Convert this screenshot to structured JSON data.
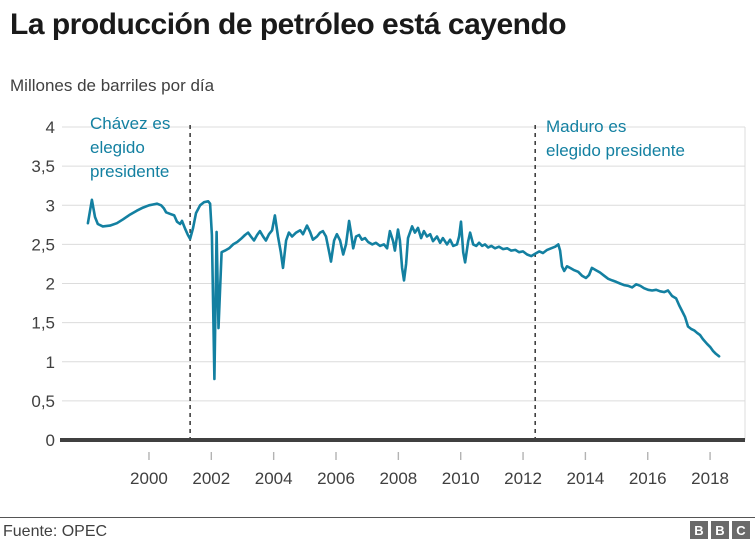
{
  "chart_data": {
    "type": "line",
    "title": "La producción de petróleo está cayendo",
    "subtitle": "Millones de barriles por día",
    "source": "Fuente: OPEC",
    "xlim": [
      1997.21,
      2019.12
    ],
    "ylim": [
      0,
      4
    ],
    "grid": "horizontal-only",
    "legend": "none",
    "line_color": "#1380A1",
    "axis_color": "#404040",
    "grid_color": "#dcdcdc",
    "minor_tick_color": "#b3b3b3",
    "tick_label_color": "#404040",
    "annotation_color": "#1380A1",
    "xticks": [
      2000,
      2002,
      2004,
      2006,
      2008,
      2010,
      2012,
      2014,
      2016,
      2018
    ],
    "yticks": [
      {
        "v": 0,
        "label": "0"
      },
      {
        "v": 0.5,
        "label": "0,5"
      },
      {
        "v": 1,
        "label": "1"
      },
      {
        "v": 1.5,
        "label": "1,5"
      },
      {
        "v": 2,
        "label": "2"
      },
      {
        "v": 2.5,
        "label": "2,5"
      },
      {
        "v": 3,
        "label": "3"
      },
      {
        "v": 3.5,
        "label": "3,5"
      },
      {
        "v": 4,
        "label": "4"
      }
    ],
    "event_lines": [
      {
        "year": 2001.32,
        "lines": [
          "Chávez es",
          "elegido",
          "presidente"
        ]
      },
      {
        "year": 2012.39,
        "lines": [
          "Maduro es",
          "elegido presidente"
        ]
      }
    ],
    "series": [
      {
        "points": [
          [
            1998.04,
            2.77
          ],
          [
            1998.17,
            3.07
          ],
          [
            1998.27,
            2.85
          ],
          [
            1998.36,
            2.76
          ],
          [
            1998.52,
            2.73
          ],
          [
            1998.75,
            2.74
          ],
          [
            1998.97,
            2.77
          ],
          [
            1999.17,
            2.82
          ],
          [
            1999.39,
            2.88
          ],
          [
            1999.61,
            2.93
          ],
          [
            1999.81,
            2.97
          ],
          [
            2000.0,
            3.0
          ],
          [
            2000.13,
            3.01
          ],
          [
            2000.26,
            3.02
          ],
          [
            2000.39,
            3.0
          ],
          [
            2000.48,
            2.96
          ],
          [
            2000.55,
            2.91
          ],
          [
            2000.68,
            2.89
          ],
          [
            2000.81,
            2.87
          ],
          [
            2000.9,
            2.79
          ],
          [
            2001.0,
            2.76
          ],
          [
            2001.06,
            2.8
          ],
          [
            2001.16,
            2.7
          ],
          [
            2001.25,
            2.62
          ],
          [
            2001.32,
            2.57
          ],
          [
            2001.41,
            2.7
          ],
          [
            2001.51,
            2.9
          ],
          [
            2001.64,
            3.0
          ],
          [
            2001.77,
            3.04
          ],
          [
            2001.9,
            3.05
          ],
          [
            2001.96,
            3.02
          ],
          [
            2002.02,
            2.62
          ],
          [
            2002.07,
            1.45
          ],
          [
            2002.1,
            0.78
          ],
          [
            2002.17,
            2.66
          ],
          [
            2002.23,
            1.43
          ],
          [
            2002.33,
            2.4
          ],
          [
            2002.44,
            2.42
          ],
          [
            2002.57,
            2.45
          ],
          [
            2002.7,
            2.5
          ],
          [
            2002.83,
            2.53
          ],
          [
            2002.95,
            2.57
          ],
          [
            2003.08,
            2.62
          ],
          [
            2003.18,
            2.65
          ],
          [
            2003.27,
            2.6
          ],
          [
            2003.37,
            2.55
          ],
          [
            2003.47,
            2.62
          ],
          [
            2003.56,
            2.67
          ],
          [
            2003.66,
            2.6
          ],
          [
            2003.75,
            2.55
          ],
          [
            2003.85,
            2.63
          ],
          [
            2003.95,
            2.68
          ],
          [
            2004.04,
            2.87
          ],
          [
            2004.14,
            2.6
          ],
          [
            2004.23,
            2.4
          ],
          [
            2004.3,
            2.2
          ],
          [
            2004.4,
            2.55
          ],
          [
            2004.49,
            2.65
          ],
          [
            2004.59,
            2.6
          ],
          [
            2004.72,
            2.65
          ],
          [
            2004.85,
            2.68
          ],
          [
            2004.94,
            2.63
          ],
          [
            2005.07,
            2.74
          ],
          [
            2005.17,
            2.66
          ],
          [
            2005.26,
            2.56
          ],
          [
            2005.39,
            2.6
          ],
          [
            2005.49,
            2.65
          ],
          [
            2005.58,
            2.67
          ],
          [
            2005.68,
            2.6
          ],
          [
            2005.78,
            2.4
          ],
          [
            2005.84,
            2.28
          ],
          [
            2005.94,
            2.55
          ],
          [
            2006.03,
            2.63
          ],
          [
            2006.13,
            2.55
          ],
          [
            2006.23,
            2.37
          ],
          [
            2006.32,
            2.5
          ],
          [
            2006.42,
            2.8
          ],
          [
            2006.48,
            2.65
          ],
          [
            2006.55,
            2.45
          ],
          [
            2006.64,
            2.6
          ],
          [
            2006.74,
            2.62
          ],
          [
            2006.83,
            2.56
          ],
          [
            2006.93,
            2.58
          ],
          [
            2007.03,
            2.53
          ],
          [
            2007.16,
            2.5
          ],
          [
            2007.28,
            2.52
          ],
          [
            2007.41,
            2.48
          ],
          [
            2007.54,
            2.5
          ],
          [
            2007.64,
            2.45
          ],
          [
            2007.73,
            2.67
          ],
          [
            2007.83,
            2.54
          ],
          [
            2007.89,
            2.42
          ],
          [
            2007.99,
            2.69
          ],
          [
            2008.05,
            2.55
          ],
          [
            2008.12,
            2.2
          ],
          [
            2008.18,
            2.04
          ],
          [
            2008.25,
            2.25
          ],
          [
            2008.31,
            2.58
          ],
          [
            2008.44,
            2.73
          ],
          [
            2008.53,
            2.65
          ],
          [
            2008.63,
            2.71
          ],
          [
            2008.73,
            2.58
          ],
          [
            2008.82,
            2.67
          ],
          [
            2008.92,
            2.6
          ],
          [
            2009.02,
            2.63
          ],
          [
            2009.11,
            2.54
          ],
          [
            2009.24,
            2.6
          ],
          [
            2009.34,
            2.52
          ],
          [
            2009.43,
            2.58
          ],
          [
            2009.56,
            2.5
          ],
          [
            2009.66,
            2.56
          ],
          [
            2009.76,
            2.48
          ],
          [
            2009.88,
            2.5
          ],
          [
            2009.95,
            2.6
          ],
          [
            2010.01,
            2.79
          ],
          [
            2010.08,
            2.4
          ],
          [
            2010.14,
            2.27
          ],
          [
            2010.24,
            2.54
          ],
          [
            2010.3,
            2.65
          ],
          [
            2010.4,
            2.5
          ],
          [
            2010.5,
            2.48
          ],
          [
            2010.59,
            2.52
          ],
          [
            2010.69,
            2.48
          ],
          [
            2010.78,
            2.5
          ],
          [
            2010.88,
            2.46
          ],
          [
            2010.98,
            2.48
          ],
          [
            2011.1,
            2.45
          ],
          [
            2011.23,
            2.47
          ],
          [
            2011.36,
            2.44
          ],
          [
            2011.49,
            2.45
          ],
          [
            2011.62,
            2.42
          ],
          [
            2011.75,
            2.43
          ],
          [
            2011.87,
            2.4
          ],
          [
            2012.0,
            2.41
          ],
          [
            2012.13,
            2.37
          ],
          [
            2012.26,
            2.35
          ],
          [
            2012.39,
            2.38
          ],
          [
            2012.52,
            2.41
          ],
          [
            2012.64,
            2.39
          ],
          [
            2012.77,
            2.43
          ],
          [
            2012.9,
            2.45
          ],
          [
            2013.03,
            2.47
          ],
          [
            2013.13,
            2.5
          ],
          [
            2013.19,
            2.42
          ],
          [
            2013.25,
            2.22
          ],
          [
            2013.32,
            2.16
          ],
          [
            2013.41,
            2.22
          ],
          [
            2013.51,
            2.2
          ],
          [
            2013.64,
            2.17
          ],
          [
            2013.77,
            2.15
          ],
          [
            2013.89,
            2.1
          ],
          [
            2014.02,
            2.07
          ],
          [
            2014.12,
            2.11
          ],
          [
            2014.21,
            2.2
          ],
          [
            2014.34,
            2.17
          ],
          [
            2014.47,
            2.14
          ],
          [
            2014.6,
            2.1
          ],
          [
            2014.73,
            2.06
          ],
          [
            2014.86,
            2.04
          ],
          [
            2014.99,
            2.02
          ],
          [
            2015.11,
            2.0
          ],
          [
            2015.24,
            1.98
          ],
          [
            2015.37,
            1.97
          ],
          [
            2015.5,
            1.95
          ],
          [
            2015.63,
            1.99
          ],
          [
            2015.76,
            1.97
          ],
          [
            2015.88,
            1.94
          ],
          [
            2016.01,
            1.92
          ],
          [
            2016.14,
            1.91
          ],
          [
            2016.27,
            1.92
          ],
          [
            2016.4,
            1.9
          ],
          [
            2016.53,
            1.89
          ],
          [
            2016.65,
            1.91
          ],
          [
            2016.78,
            1.84
          ],
          [
            2016.91,
            1.81
          ],
          [
            2017.01,
            1.72
          ],
          [
            2017.1,
            1.65
          ],
          [
            2017.2,
            1.57
          ],
          [
            2017.29,
            1.45
          ],
          [
            2017.39,
            1.42
          ],
          [
            2017.49,
            1.4
          ],
          [
            2017.58,
            1.37
          ],
          [
            2017.68,
            1.34
          ],
          [
            2017.77,
            1.29
          ],
          [
            2017.9,
            1.23
          ],
          [
            2018.0,
            1.19
          ],
          [
            2018.09,
            1.14
          ],
          [
            2018.19,
            1.1
          ],
          [
            2018.29,
            1.07
          ]
        ]
      }
    ]
  },
  "footer": {
    "logo_letters": [
      "B",
      "B",
      "C"
    ]
  }
}
